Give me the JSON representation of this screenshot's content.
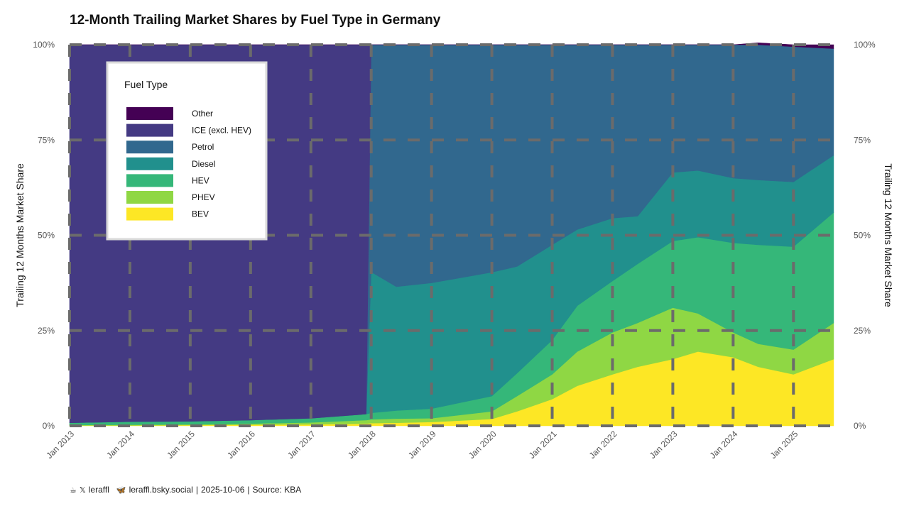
{
  "page_title": "12-Month Trailing Market Shares by Fuel Type in Germany",
  "footer": {
    "x_handle": "leraffl",
    "bsky_handle": "leraffl.bsky.social",
    "date": "2025-10-06",
    "source": "Source: KBA",
    "sep": "|"
  },
  "chart_data": {
    "type": "area",
    "stacked": true,
    "title": "12-Month Trailing Market Shares by Fuel Type in Germany",
    "ylabel_left": "Trailing 12 Months Market Share",
    "ylabel_right": "Trailing 12 Months Market Share",
    "xlim": [
      "2013-01",
      "2025-10"
    ],
    "ylim": [
      0,
      100
    ],
    "x_ticks": [
      "Jan 2013",
      "Jan 2014",
      "Jan 2015",
      "Jan 2016",
      "Jan 2017",
      "Jan 2018",
      "Jan 2019",
      "Jan 2020",
      "Jan 2021",
      "Jan 2022",
      "Jan 2023",
      "Jan 2024",
      "Jan 2025"
    ],
    "y_ticks": [
      "0%",
      "25%",
      "50%",
      "75%",
      "100%"
    ],
    "grid": true,
    "legend": {
      "title": "Fuel Type",
      "placement": "top-left",
      "entries": [
        "Other",
        "ICE (excl. HEV)",
        "Petrol",
        "Diesel",
        "HEV",
        "PHEV",
        "BEV"
      ]
    },
    "colors": {
      "Other": "#440154",
      "ICE (excl. HEV)": "#443a83",
      "Petrol": "#31688e",
      "Diesel": "#21908d",
      "HEV": "#35b779",
      "PHEV": "#8fd744",
      "BEV": "#fde725"
    },
    "stack_order_bottom_to_top": [
      "BEV",
      "PHEV",
      "HEV",
      "Diesel",
      "Petrol",
      "ICE (excl. HEV)",
      "Other"
    ],
    "x": [
      "2013-01",
      "2014-01",
      "2015-01",
      "2016-01",
      "2017-01",
      "2017-12",
      "2018-01",
      "2018-06",
      "2019-01",
      "2020-01",
      "2020-06",
      "2021-01",
      "2021-06",
      "2022-01",
      "2022-06",
      "2023-01",
      "2023-06",
      "2024-01",
      "2024-06",
      "2025-01",
      "2025-09"
    ],
    "series": [
      {
        "name": "BEV",
        "values": [
          0.1,
          0.1,
          0.2,
          0.3,
          0.4,
          0.6,
          0.7,
          0.8,
          1.0,
          1.8,
          3.8,
          7.0,
          10.5,
          13.5,
          15.5,
          17.5,
          19.5,
          18.0,
          15.5,
          13.5,
          17.5
        ]
      },
      {
        "name": "PHEV",
        "values": [
          0.1,
          0.2,
          0.2,
          0.3,
          0.5,
          0.9,
          1.0,
          1.1,
          1.0,
          2.0,
          4.0,
          6.5,
          9.0,
          11.0,
          11.5,
          13.5,
          10.0,
          6.5,
          6.0,
          6.5,
          9.5
        ]
      },
      {
        "name": "HEV",
        "values": [
          0.6,
          0.8,
          0.8,
          0.9,
          1.1,
          1.6,
          1.7,
          2.1,
          2.5,
          4.0,
          6.0,
          9.0,
          12.0,
          13.5,
          15.5,
          17.5,
          20.0,
          23.5,
          26.0,
          27.0,
          29.0
        ]
      },
      {
        "name": "Diesel",
        "values": [
          0,
          0,
          0,
          0,
          0,
          0,
          37.0,
          32.5,
          33.0,
          32.5,
          28.0,
          25.0,
          20.0,
          16.5,
          12.5,
          18.0,
          17.5,
          17.0,
          17.0,
          17.0,
          15.0
        ]
      },
      {
        "name": "Petrol",
        "values": [
          0,
          0,
          0,
          0,
          0,
          0,
          59.6,
          63.5,
          62.5,
          59.7,
          58.2,
          52.5,
          48.5,
          45.5,
          45.0,
          33.5,
          33.0,
          35.0,
          35.5,
          35.5,
          28.0
        ]
      },
      {
        "name": "ICE (excl. HEV)",
        "values": [
          99.2,
          98.9,
          98.8,
          98.5,
          98.0,
          96.9,
          0,
          0,
          0,
          0,
          0,
          0,
          0,
          0,
          0,
          0,
          0,
          0,
          0,
          0,
          0
        ]
      },
      {
        "name": "Other",
        "values": [
          0,
          0,
          0,
          0,
          0,
          0,
          0,
          0,
          0,
          0,
          0,
          0,
          0,
          0,
          0,
          0,
          0,
          0,
          0.5,
          0.5,
          1.0
        ]
      }
    ]
  }
}
